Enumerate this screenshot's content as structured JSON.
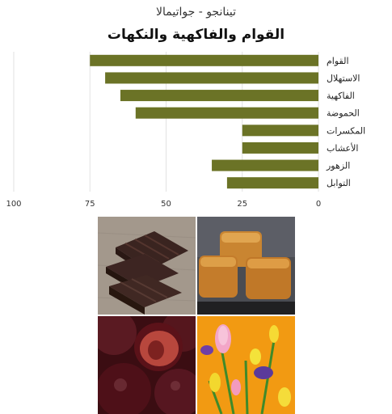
{
  "header": {
    "subtitle": "تينانجو - جواتيمالا",
    "title": "القوام والفاكهية والنكهات"
  },
  "chart_data": {
    "type": "bar",
    "orientation": "horizontal",
    "categories": [
      "القوام",
      "الاستهلال",
      "الفاكهية",
      "الحموضة",
      "المكسرات",
      "الأعشاب",
      "الزهور",
      "التوابل"
    ],
    "values": [
      75,
      70,
      65,
      60,
      25,
      25,
      35,
      30
    ],
    "xlim": [
      0,
      100
    ],
    "x_reversed": true,
    "ticks": [
      "0",
      "25",
      "50",
      "75",
      "100"
    ],
    "bar_color": "#6b7326",
    "grid": true
  },
  "photos": [
    {
      "name": "dark-chocolate-photo"
    },
    {
      "name": "caramel-photo"
    },
    {
      "name": "plum-photo"
    },
    {
      "name": "flowers-photo"
    }
  ]
}
